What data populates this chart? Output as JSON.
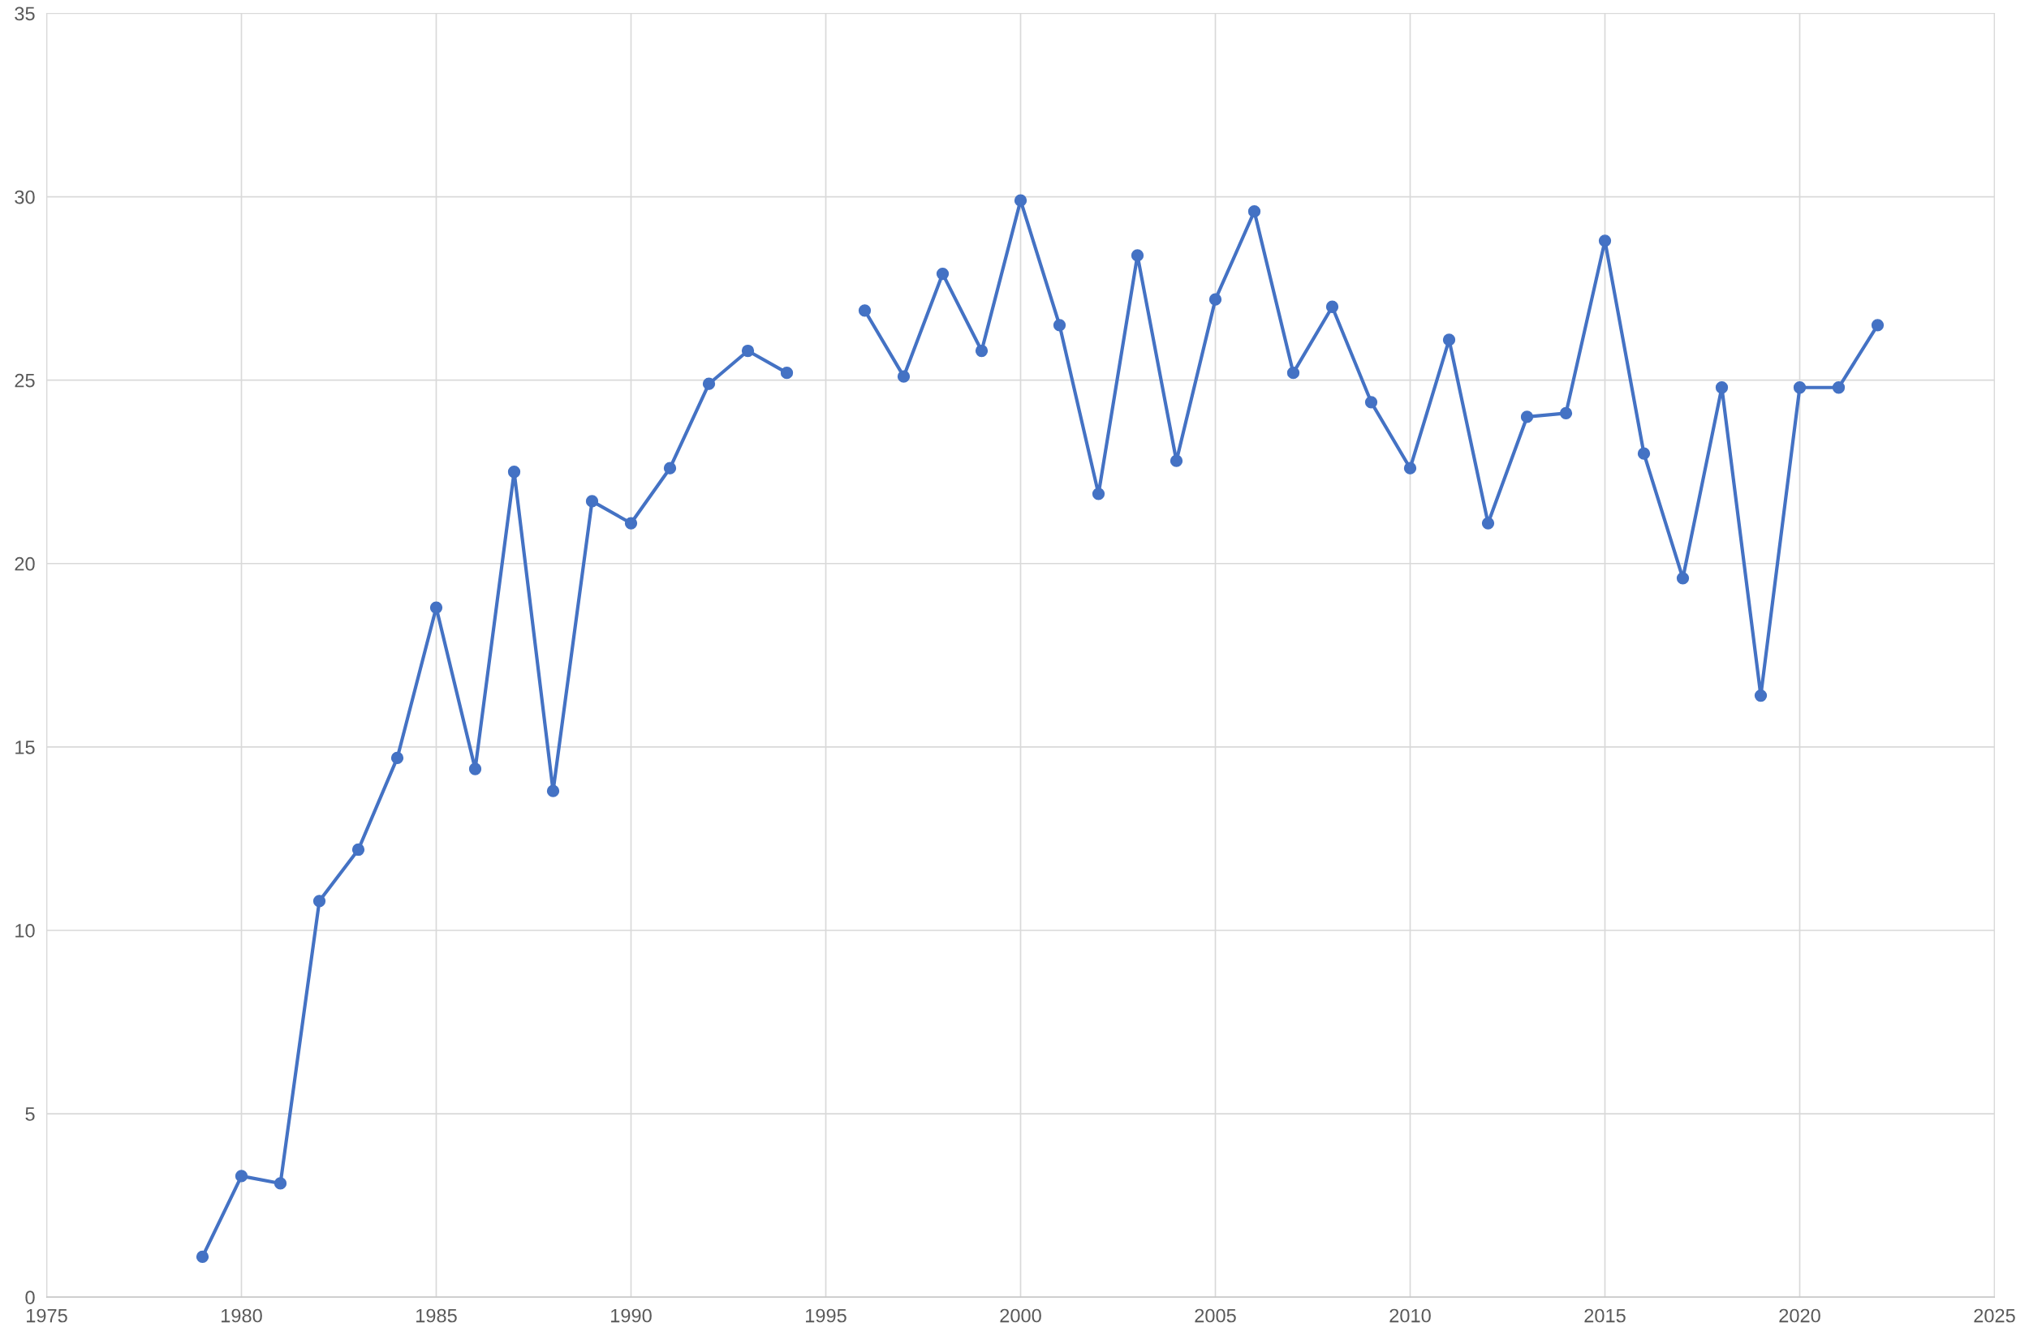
{
  "chart_data": {
    "type": "line",
    "x": [
      1979,
      1980,
      1981,
      1982,
      1983,
      1984,
      1985,
      1986,
      1987,
      1988,
      1989,
      1990,
      1991,
      1992,
      1993,
      1994,
      1995,
      1996,
      1997,
      1998,
      1999,
      2000,
      2001,
      2002,
      2003,
      2004,
      2005,
      2006,
      2007,
      2008,
      2009,
      2010,
      2011,
      2012,
      2013,
      2014,
      2015,
      2016,
      2017,
      2018,
      2019,
      2020,
      2021,
      2022
    ],
    "series": [
      {
        "color": "#4472c4",
        "values": [
          1.1,
          3.3,
          3.1,
          10.8,
          12.2,
          14.7,
          18.8,
          14.4,
          22.5,
          13.8,
          21.7,
          21.1,
          22.6,
          24.9,
          25.8,
          25.2,
          null,
          26.9,
          25.1,
          27.9,
          25.8,
          29.9,
          26.5,
          21.9,
          28.4,
          22.8,
          27.2,
          29.6,
          25.2,
          27.0,
          24.4,
          22.6,
          26.1,
          21.1,
          24.0,
          24.1,
          28.8,
          23.0,
          19.6,
          24.8,
          16.4,
          24.8,
          24.8,
          26.5
        ]
      }
    ],
    "xlim": [
      1975,
      2025
    ],
    "xticks": [
      1975,
      1980,
      1985,
      1990,
      1995,
      2000,
      2005,
      2010,
      2015,
      2020,
      2025
    ],
    "ylim": [
      0,
      35
    ],
    "yticks": [
      0,
      5,
      10,
      15,
      20,
      25,
      30,
      35
    ],
    "grid": true,
    "marker": "circle",
    "line_style": "solid"
  }
}
